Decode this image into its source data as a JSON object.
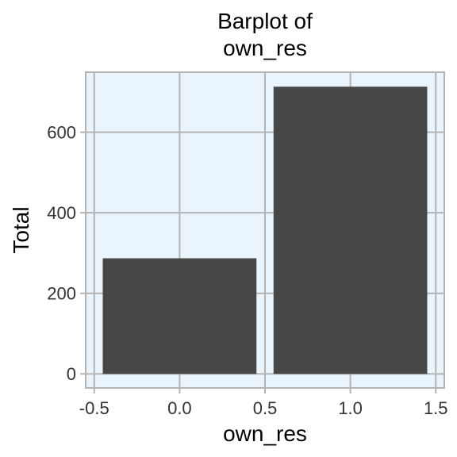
{
  "chart_data": {
    "type": "bar",
    "title_lines": [
      "Barplot of",
      "own_res"
    ],
    "xlabel": "own_res",
    "ylabel": "Total",
    "bars": [
      {
        "x": 0,
        "value": 287
      },
      {
        "x": 1,
        "value": 713
      }
    ],
    "bar_width": 0.9,
    "xlim": [
      -0.55,
      1.55
    ],
    "ylim": [
      -35,
      749
    ],
    "xticks": [
      -0.5,
      0.0,
      0.5,
      1.0,
      1.5
    ],
    "xtick_labels": [
      "-0.5",
      "0.0",
      "0.5",
      "1.0",
      "1.5"
    ],
    "yticks": [
      0,
      200,
      400,
      600
    ],
    "ytick_labels": [
      "0",
      "200",
      "400",
      "600"
    ],
    "grid": true,
    "colors": {
      "panel_background": "#eaf4fc",
      "bar_fill": "#474747",
      "grid": "#b3b3b3"
    }
  }
}
